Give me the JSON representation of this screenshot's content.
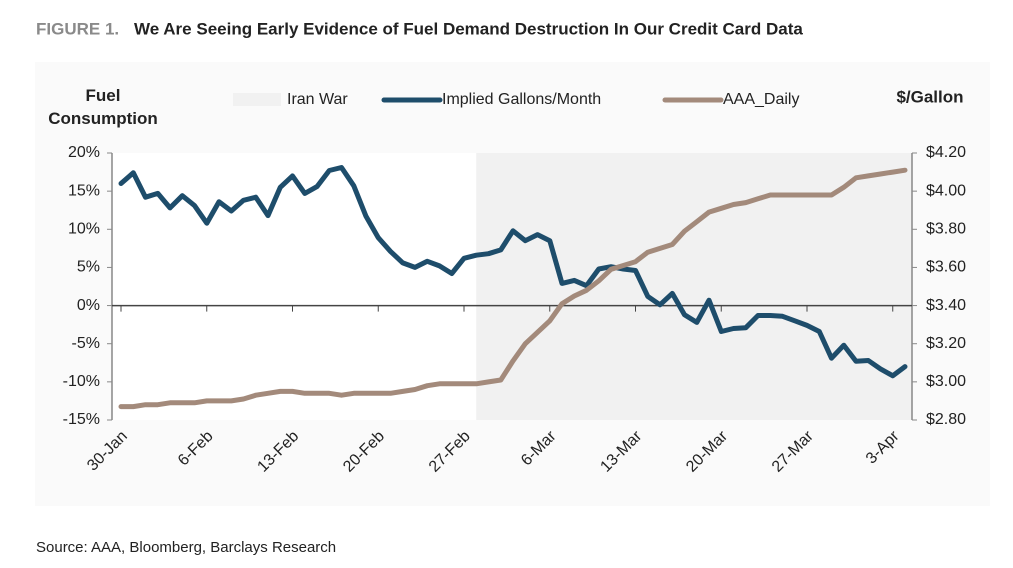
{
  "chart_data": {
    "type": "line",
    "figure_label": "FIGURE 1.",
    "title": "We Are Seeing Early Evidence of Fuel Demand Destruction In Our Credit Card Data",
    "y_label": "Fuel Consumption",
    "y2_label": "$/Gallon",
    "source": "Source: AAA, Bloomberg, Barclays Research",
    "shade": {
      "name": "Iran War",
      "from_index": 29,
      "color": "#f1f1f1"
    },
    "categories": [
      "30-Jan",
      null,
      null,
      null,
      null,
      null,
      null,
      "6-Feb",
      null,
      null,
      null,
      null,
      null,
      null,
      "13-Feb",
      null,
      null,
      null,
      null,
      null,
      null,
      "20-Feb",
      null,
      null,
      null,
      null,
      null,
      null,
      "27-Feb",
      null,
      null,
      null,
      null,
      null,
      null,
      "6-Mar",
      null,
      null,
      null,
      null,
      null,
      null,
      "13-Mar",
      null,
      null,
      null,
      null,
      null,
      null,
      "20-Mar",
      null,
      null,
      null,
      null,
      null,
      null,
      "27-Mar",
      null,
      null,
      null,
      null,
      null,
      null,
      "3-Apr",
      null
    ],
    "series": [
      {
        "name": "Implied Gallons/Month",
        "color": "#1e4d6b",
        "axis": "y",
        "values": [
          16,
          17.4,
          14.2,
          14.7,
          12.8,
          14.4,
          13.1,
          10.8,
          13.6,
          12.4,
          13.8,
          14.2,
          11.8,
          15.5,
          17.0,
          14.7,
          15.6,
          17.7,
          18.1,
          15.7,
          11.7,
          8.9,
          7.1,
          5.6,
          5.0,
          5.8,
          5.2,
          4.2,
          6.2,
          6.6,
          6.8,
          7.3,
          9.8,
          8.5,
          9.3,
          8.5,
          2.9,
          3.3,
          2.6,
          4.8,
          5.1,
          4.8,
          4.6,
          1.2,
          0.1,
          1.6,
          -1.2,
          -2.2,
          0.7,
          -3.4,
          -3.0,
          -2.9,
          -1.3,
          -1.3,
          -1.4,
          -2.0,
          -2.6,
          -3.4,
          -6.9,
          -5.2,
          -7.3,
          -7.2,
          -8.3,
          -9.2,
          -8.0
        ]
      },
      {
        "name": "AAA_Daily",
        "color": "#a38a7b",
        "axis": "y2",
        "values": [
          2.87,
          2.87,
          2.88,
          2.88,
          2.89,
          2.89,
          2.89,
          2.9,
          2.9,
          2.9,
          2.91,
          2.93,
          2.94,
          2.95,
          2.95,
          2.94,
          2.94,
          2.94,
          2.93,
          2.94,
          2.94,
          2.94,
          2.94,
          2.95,
          2.96,
          2.98,
          2.99,
          2.99,
          2.99,
          2.99,
          3.0,
          3.01,
          3.11,
          3.2,
          3.26,
          3.32,
          3.41,
          3.45,
          3.48,
          3.53,
          3.59,
          3.61,
          3.63,
          3.68,
          3.7,
          3.72,
          3.79,
          3.84,
          3.89,
          3.91,
          3.93,
          3.94,
          3.96,
          3.98,
          3.98,
          3.98,
          3.98,
          3.98,
          3.98,
          4.02,
          4.07,
          4.08,
          4.09,
          4.1,
          4.11
        ]
      }
    ],
    "ylim": [
      -15,
      20
    ],
    "yticks": [
      {
        "value": 20,
        "label": "20%"
      },
      {
        "value": 15,
        "label": "15%"
      },
      {
        "value": 10,
        "label": "10%"
      },
      {
        "value": 5,
        "label": "5%"
      },
      {
        "value": 0,
        "label": "0%"
      },
      {
        "value": -5,
        "label": "-5%"
      },
      {
        "value": -10,
        "label": "-10%"
      },
      {
        "value": -15,
        "label": "-15%"
      }
    ],
    "y2lim": [
      2.8,
      4.2
    ],
    "y2ticks": [
      {
        "value": 4.2,
        "label": "$4.20"
      },
      {
        "value": 4.0,
        "label": "$4.00"
      },
      {
        "value": 3.8,
        "label": "$3.80"
      },
      {
        "value": 3.6,
        "label": "$3.60"
      },
      {
        "value": 3.4,
        "label": "$3.40"
      },
      {
        "value": 3.2,
        "label": "$3.20"
      },
      {
        "value": 3.0,
        "label": "$3.00"
      },
      {
        "value": 2.8,
        "label": "$2.80"
      }
    ]
  }
}
